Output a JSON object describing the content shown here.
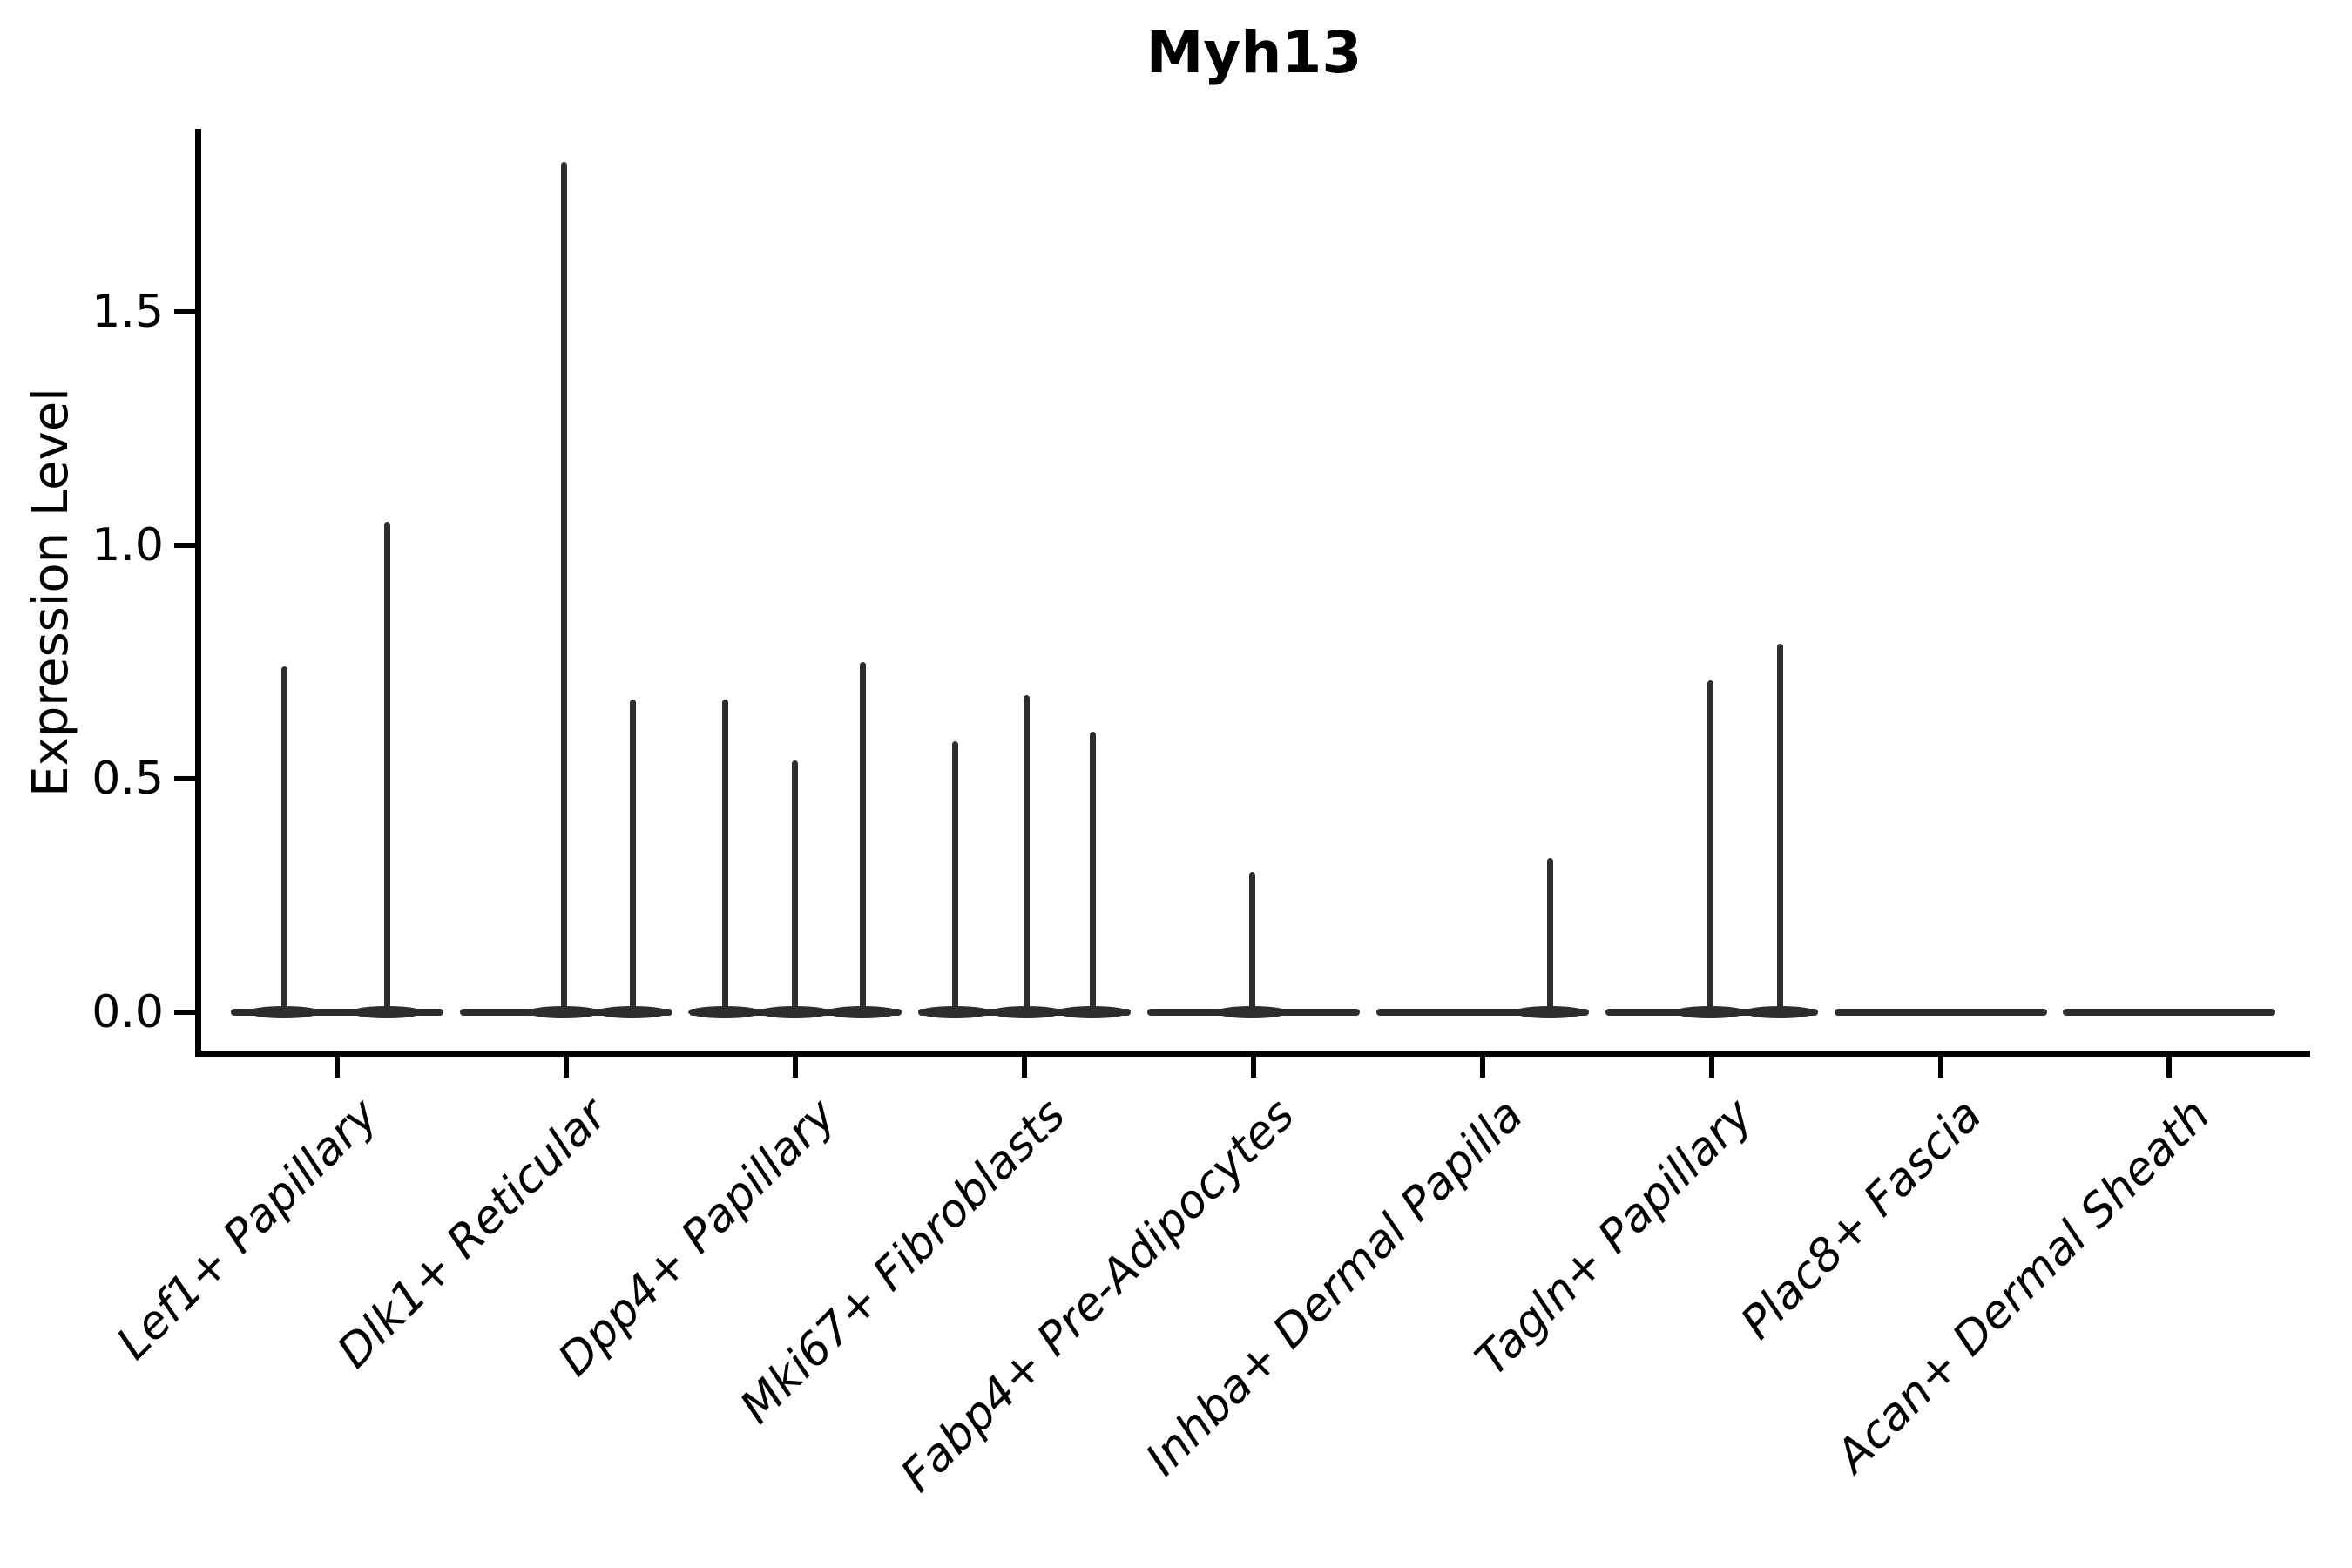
{
  "title": "Myh13",
  "y_axis": {
    "label": "Expression Level",
    "tick_labels": [
      "0.0",
      "0.5",
      "1.0",
      "1.5"
    ]
  },
  "chart_data": {
    "type": "violin",
    "title": "Myh13",
    "xlabel": "",
    "ylabel": "Expression Level",
    "ylim": [
      -0.09,
      1.89
    ],
    "yticks": [
      0.0,
      0.5,
      1.0,
      1.5
    ],
    "grid": false,
    "legend": "none",
    "categories": [
      "Lef1+ Papillary",
      "Dlk1+ Reticular",
      "Dpp4+ Papillary",
      "Mki67+ Fibroblasts",
      "Fabp4+ Pre-Adipocytes",
      "Inhba+ Dermal Papilla",
      "Tagln+ Papillary",
      "Plac8+ Fascia",
      "Acan+ Dermal Sheath"
    ],
    "violins": [
      {
        "category": "Lef1+ Papillary",
        "spikes": [
          {
            "dx": -61,
            "max": 0.74
          },
          {
            "dx": 57,
            "max": 1.05
          }
        ]
      },
      {
        "category": "Dlk1+ Reticular",
        "spikes": [
          {
            "dx": -3,
            "max": 1.82
          },
          {
            "dx": 76,
            "max": 0.67
          }
        ]
      },
      {
        "category": "Dpp4+ Papillary",
        "spikes": [
          {
            "dx": -81,
            "max": 0.67
          },
          {
            "dx": -1,
            "max": 0.54
          },
          {
            "dx": 77,
            "max": 0.75
          }
        ]
      },
      {
        "category": "Mki67+ Fibroblasts",
        "spikes": [
          {
            "dx": -80,
            "max": 0.58
          },
          {
            "dx": 2,
            "max": 0.68
          },
          {
            "dx": 78,
            "max": 0.6
          }
        ]
      },
      {
        "category": "Fabp4+ Pre-Adipocytes",
        "spikes": [
          {
            "dx": -2,
            "max": 0.3
          }
        ]
      },
      {
        "category": "Inhba+ Dermal Papilla",
        "spikes": [
          {
            "dx": 77,
            "max": 0.33
          }
        ]
      },
      {
        "category": "Tagln+ Papillary",
        "spikes": [
          {
            "dx": -2,
            "max": 0.71
          },
          {
            "dx": 78,
            "max": 0.79
          }
        ]
      },
      {
        "category": "Plac8+ Fascia",
        "spikes": []
      },
      {
        "category": "Acan+ Dermal Sheath",
        "spikes": []
      }
    ],
    "colors": {
      "violin": "#2d2d2d",
      "axis": "#000000",
      "background": "#ffffff"
    }
  }
}
